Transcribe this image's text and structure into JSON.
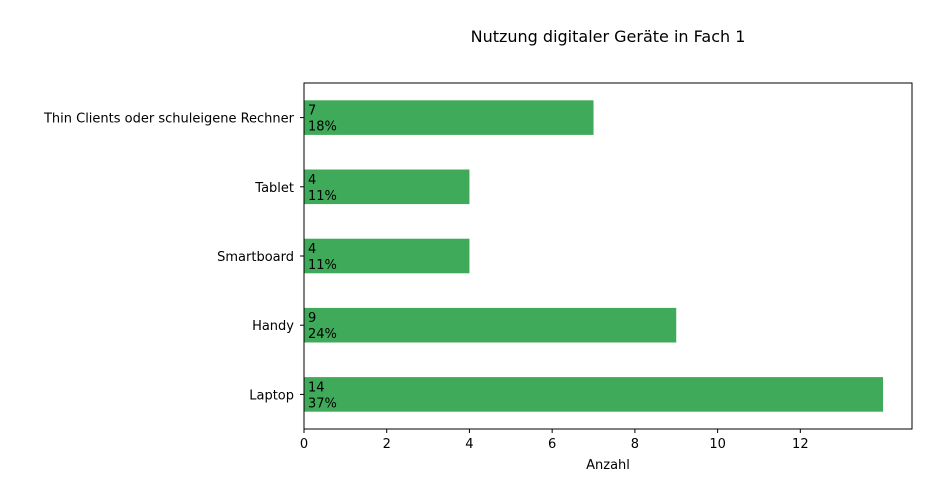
{
  "chart_data": {
    "type": "bar",
    "orientation": "horizontal",
    "title": "Nutzung digitaler Geräte in Fach 1",
    "xlabel": "Anzahl",
    "ylabel": "",
    "categories": [
      "Thin Clients oder schuleigene Rechner",
      "Tablet",
      "Smartboard",
      "Handy",
      "Laptop"
    ],
    "values": [
      7,
      4,
      4,
      9,
      14
    ],
    "percent_labels": [
      "18%",
      "11%",
      "11%",
      "24%",
      "37%"
    ],
    "xlim": [
      0,
      14.7
    ],
    "xticks": [
      0,
      2,
      4,
      6,
      8,
      10,
      12
    ],
    "bar_color": "#3faa5a",
    "grid": false,
    "legend": "none"
  }
}
